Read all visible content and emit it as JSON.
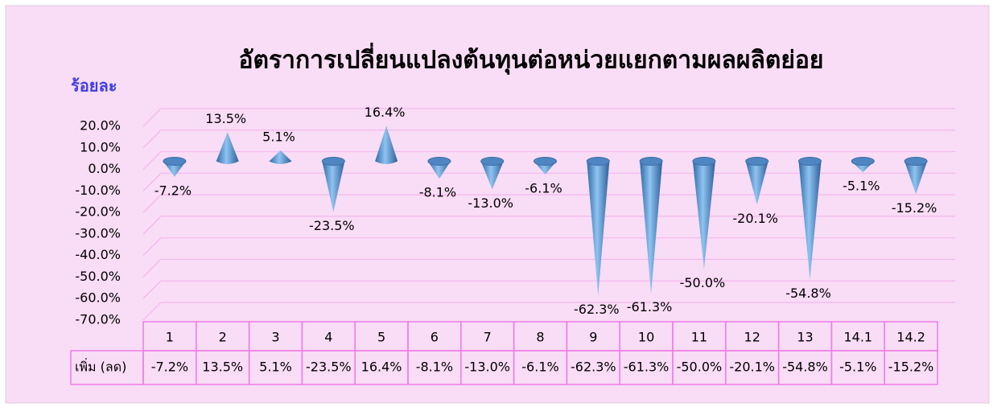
{
  "chart_data": {
    "type": "cone",
    "title": "อัตราการเปลี่ยนแปลงต้นทุนต่อหน่วยแยกตามผลผลิตย่อย",
    "y_label": "ร้อยละ",
    "categories": [
      "1",
      "2",
      "3",
      "4",
      "5",
      "6",
      "7",
      "8",
      "9",
      "10",
      "11",
      "12",
      "13",
      "14.1",
      "14.2"
    ],
    "series": [
      {
        "name": "เพิ่ม (ลด)",
        "color": "#5b9bd5",
        "values": [
          -7.2,
          13.5,
          5.1,
          -23.5,
          16.4,
          -8.1,
          -13.0,
          -6.1,
          -62.3,
          -61.3,
          -50.0,
          -20.1,
          -54.8,
          -5.1,
          -15.2
        ],
        "value_labels": [
          "-7.2%",
          "13.5%",
          "5.1%",
          "-23.5%",
          "16.4%",
          "-8.1%",
          "-13.0%",
          "-6.1%",
          "-62.3%",
          "-61.3%",
          "-50.0%",
          "-20.1%",
          "-54.8%",
          "-5.1%",
          "-15.2%"
        ]
      }
    ],
    "ylim": [
      -70,
      20
    ],
    "yticks": [
      {
        "value": 20,
        "label": "20.0%"
      },
      {
        "value": 10,
        "label": "10.0%"
      },
      {
        "value": 0,
        "label": "0.0%"
      },
      {
        "value": -10,
        "label": "-10.0%"
      },
      {
        "value": -20,
        "label": "-20.0%"
      },
      {
        "value": -30,
        "label": "-30.0%"
      },
      {
        "value": -40,
        "label": "-40.0%"
      },
      {
        "value": -50,
        "label": "-50.0%"
      },
      {
        "value": -60,
        "label": "-60.0%"
      },
      {
        "value": -70,
        "label": "-70.0%"
      }
    ],
    "grid": true
  }
}
